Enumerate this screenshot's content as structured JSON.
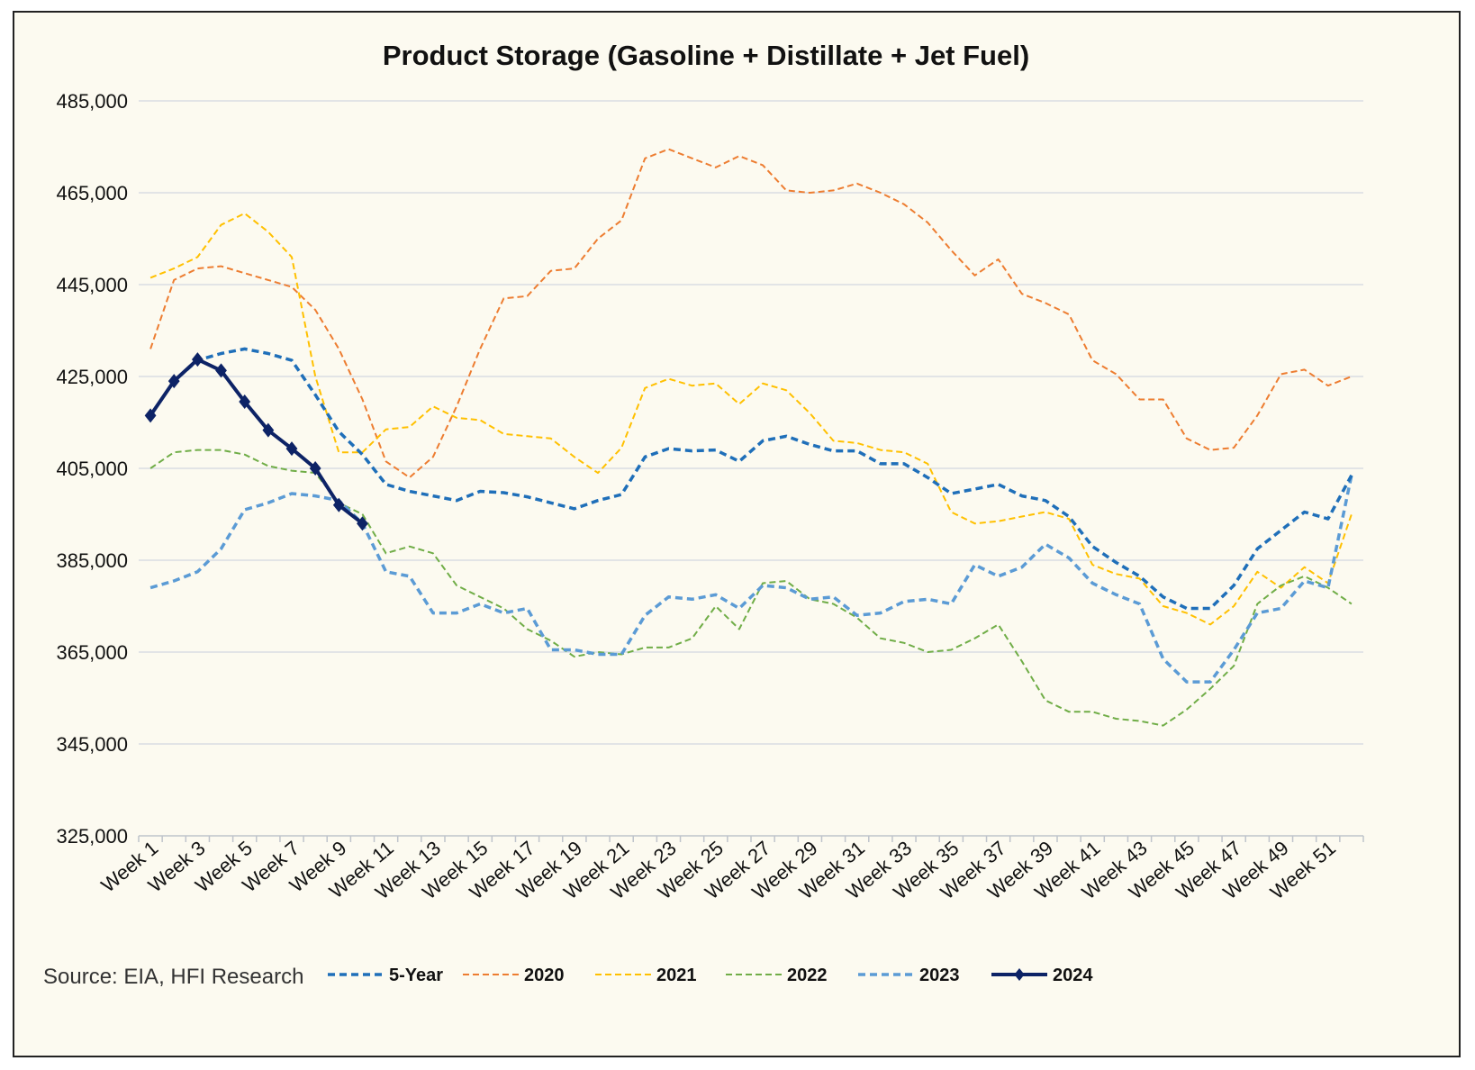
{
  "chart_data": {
    "type": "line",
    "title": "Product Storage (Gasoline + Distillate + Jet Fuel)",
    "xlabel": "",
    "ylabel": "",
    "source": "Source: EIA, HFI Research",
    "ylim": [
      325000,
      485000
    ],
    "yticks": [
      325000,
      345000,
      365000,
      385000,
      405000,
      425000,
      445000,
      465000,
      485000
    ],
    "ytick_labels": [
      "325,000",
      "345,000",
      "365,000",
      "385,000",
      "405,000",
      "425,000",
      "445,000",
      "465,000",
      "485,000"
    ],
    "x_labels": [
      "Week 1",
      "Week 3",
      "Week 5",
      "Week 7",
      "Week 9",
      "Week 11",
      "Week 13",
      "Week 15",
      "Week 17",
      "Week 19",
      "Week 21",
      "Week 23",
      "Week 25",
      "Week 27",
      "Week 29",
      "Week 31",
      "Week 33",
      "Week 35",
      "Week 37",
      "Week 39",
      "Week 41",
      "Week 43",
      "Week 45",
      "Week 47",
      "Week 49",
      "Week 51"
    ],
    "grid": true,
    "legend_position": "bottom",
    "series": [
      {
        "name": "5-Year",
        "color": "#1f6fb9",
        "style": "dashed",
        "width": 3.5,
        "values": [
          416500,
          424000,
          428500,
          430000,
          431000,
          430000,
          428500,
          421000,
          413000,
          408000,
          401500,
          400000,
          399000,
          398000,
          400000,
          399700,
          398800,
          397500,
          396200,
          398000,
          399300,
          407500,
          409300,
          408800,
          409000,
          406500,
          411000,
          412000,
          410200,
          408800,
          408800,
          406000,
          406000,
          403000,
          399500,
          400500,
          401500,
          399000,
          398000,
          394500,
          388000,
          384500,
          381500,
          377000,
          374500,
          374500,
          379500,
          387500,
          391500,
          395500,
          394000,
          403500
        ]
      },
      {
        "name": "2020",
        "color": "#ed7d31",
        "style": "dashed",
        "width": 2,
        "values": [
          431000,
          446000,
          448500,
          449000,
          447500,
          446000,
          444500,
          439500,
          431000,
          420000,
          406500,
          403000,
          407500,
          418500,
          431000,
          442000,
          442500,
          448000,
          448500,
          455000,
          459000,
          472500,
          474500,
          472500,
          470500,
          473000,
          471000,
          465500,
          465000,
          465500,
          467000,
          465000,
          462500,
          458500,
          452500,
          447000,
          450500,
          443000,
          441000,
          438500,
          428500,
          425500,
          420000,
          420000,
          411500,
          409000,
          409500,
          416500,
          425500,
          426500,
          423000,
          425000
        ]
      },
      {
        "name": "2021",
        "color": "#ffc000",
        "style": "dashed",
        "width": 2,
        "values": [
          446500,
          448500,
          451000,
          458000,
          460500,
          456500,
          451000,
          425000,
          408500,
          408500,
          413500,
          414000,
          418500,
          416000,
          415500,
          412500,
          412000,
          411500,
          407500,
          404000,
          409500,
          422500,
          424500,
          423000,
          423500,
          419000,
          423500,
          422000,
          417000,
          411000,
          410500,
          409000,
          408500,
          406000,
          395500,
          393000,
          393500,
          394500,
          395500,
          394000,
          384000,
          382000,
          381000,
          375000,
          373500,
          371000,
          375000,
          382500,
          379000,
          383500,
          380000,
          395000
        ]
      },
      {
        "name": "2022",
        "color": "#70ad47",
        "style": "dashed",
        "width": 2,
        "values": [
          405000,
          408500,
          409000,
          409000,
          408000,
          405500,
          404500,
          404000,
          397500,
          395000,
          386500,
          388000,
          386500,
          379500,
          377000,
          374500,
          370000,
          367500,
          364000,
          365000,
          364500,
          366000,
          366000,
          368000,
          375000,
          370000,
          380000,
          380500,
          376500,
          375500,
          372500,
          368000,
          367000,
          365000,
          365500,
          368000,
          371000,
          363000,
          354500,
          352000,
          352000,
          350500,
          350000,
          349000,
          352500,
          357000,
          362000,
          375500,
          379500,
          381500,
          379000,
          375500
        ]
      },
      {
        "name": "2023",
        "color": "#5b9bd5",
        "style": "dashed",
        "width": 3.5,
        "values": [
          379000,
          380500,
          382500,
          387500,
          396000,
          397500,
          399500,
          399000,
          398000,
          393000,
          382500,
          381500,
          373500,
          373500,
          375500,
          373500,
          374500,
          365500,
          365500,
          364500,
          364500,
          373000,
          377000,
          376500,
          377500,
          374500,
          379500,
          379000,
          376500,
          377000,
          373000,
          373500,
          376000,
          376500,
          375500,
          384000,
          381500,
          383500,
          388500,
          385500,
          380000,
          377500,
          375500,
          363500,
          358500,
          358500,
          365500,
          373500,
          374500,
          380500,
          379000,
          403500
        ]
      },
      {
        "name": "2024",
        "color": "#0d2366",
        "style": "solid",
        "width": 4,
        "markers": "diamond",
        "values": [
          416500,
          424000,
          428700,
          426300,
          419500,
          413300,
          409300,
          405000,
          397000,
          393000
        ]
      }
    ]
  }
}
